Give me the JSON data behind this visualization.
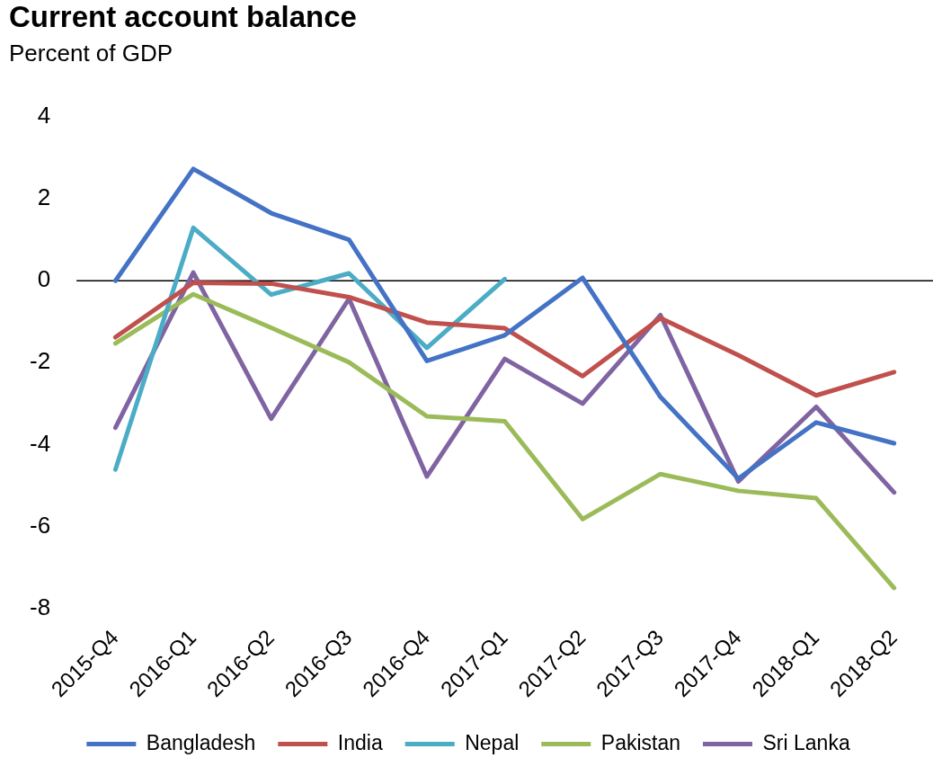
{
  "chart_data": {
    "type": "line",
    "title": "Current account balance",
    "subtitle": "Percent of GDP",
    "categories": [
      "2015-Q4",
      "2016-Q1",
      "2016-Q2",
      "2016-Q3",
      "2016-Q4",
      "2017-Q1",
      "2017-Q2",
      "2017-Q3",
      "2017-Q4",
      "2018-Q1",
      "2018-Q2"
    ],
    "series": [
      {
        "name": "Bangladesh",
        "color": "#4472c4",
        "values": [
          0.0,
          2.73,
          1.65,
          1.0,
          -1.96,
          -1.33,
          0.07,
          -2.84,
          -4.83,
          -3.46,
          -3.97
        ]
      },
      {
        "name": "India",
        "color": "#c0504d",
        "values": [
          -1.38,
          -0.05,
          -0.07,
          -0.4,
          -1.02,
          -1.16,
          -2.33,
          -0.91,
          -1.82,
          -2.8,
          -2.23
        ]
      },
      {
        "name": "Nepal",
        "color": "#4bacc6",
        "values": [
          -4.61,
          1.29,
          -0.34,
          0.18,
          -1.64,
          0.04,
          null,
          null,
          null,
          null,
          null
        ]
      },
      {
        "name": "Pakistan",
        "color": "#9bbb59",
        "values": [
          -1.53,
          -0.33,
          -1.15,
          -1.99,
          -3.31,
          -3.43,
          -5.82,
          -4.72,
          -5.13,
          -5.31,
          -7.5
        ]
      },
      {
        "name": "Sri Lanka",
        "color": "#8064a2",
        "values": [
          -3.59,
          0.2,
          -3.37,
          -0.44,
          -4.78,
          -1.91,
          -3.0,
          -0.84,
          -4.9,
          -3.08,
          -5.17
        ]
      }
    ],
    "ylim": [
      -8,
      4
    ],
    "yticks": [
      -8,
      -6,
      -4,
      -2,
      0,
      2,
      4
    ],
    "ref_lines": [
      {
        "axis": "y",
        "value": 0,
        "color": "#000000"
      }
    ],
    "grid": false,
    "legend": "bottom",
    "marker": "none",
    "line_style": "solid"
  }
}
